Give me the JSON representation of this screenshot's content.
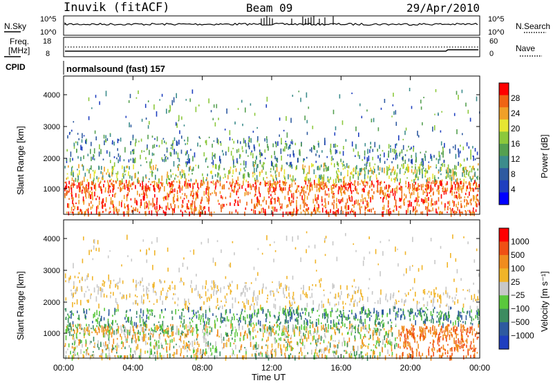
{
  "header": {
    "station": "Inuvik (fitACF)",
    "beam": "Beam 09",
    "date": "29/Apr/2010"
  },
  "noise_panel": {
    "left_label": "N.Sky",
    "right_label": "N.Search",
    "left_ticks": [
      "10^5",
      "10^0"
    ],
    "right_ticks": [
      "10^5",
      "10^0"
    ]
  },
  "freq_panel": {
    "left_label_line1": "Freq.",
    "left_label_line2": "[MHz]",
    "right_label": "Nave",
    "left_ticks": [
      "18",
      "8"
    ],
    "right_ticks": [
      "60",
      "0"
    ]
  },
  "cpid": {
    "label": "CPID",
    "value": "normalsound (fast) 157"
  },
  "colors": {
    "power": [
      "#0000ff",
      "#1f3fbf",
      "#2e5aa0",
      "#3c8c8c",
      "#55a050",
      "#8cc83c",
      "#e6e632",
      "#f0a028",
      "#f06414",
      "#ff0000"
    ],
    "velocity": [
      "#1f3fbf",
      "#2e5aa0",
      "#3c8c60",
      "#5ac83c",
      "#c8c8c8",
      "#f0b428",
      "#f08c1e",
      "#f05014",
      "#ff0000"
    ]
  },
  "chart_data": [
    {
      "type": "heatmap",
      "name": "power",
      "ylabel": "Slant Range [km]",
      "ylim": [
        180,
        4500
      ],
      "yticks": [
        "1000",
        "2000",
        "3000",
        "4000"
      ],
      "colorbar_label": "Power [dB]",
      "colorbar_ticks": [
        "4",
        "8",
        "12",
        "16",
        "20",
        "24",
        "28"
      ]
    },
    {
      "type": "heatmap",
      "name": "velocity",
      "ylabel": "Slant Range [km]",
      "ylim": [
        180,
        4500
      ],
      "yticks": [
        "1000",
        "2000",
        "3000",
        "4000"
      ],
      "colorbar_label": "Velocity [m s⁻¹]",
      "colorbar_ticks": [
        "1000",
        "500",
        "100",
        "25",
        "−25",
        "−100",
        "−500",
        "−1000"
      ],
      "xlabel": "Time UT",
      "xticks": [
        "00:00",
        "04:00",
        "08:00",
        "12:00",
        "16:00",
        "20:00",
        "00:00"
      ]
    }
  ]
}
